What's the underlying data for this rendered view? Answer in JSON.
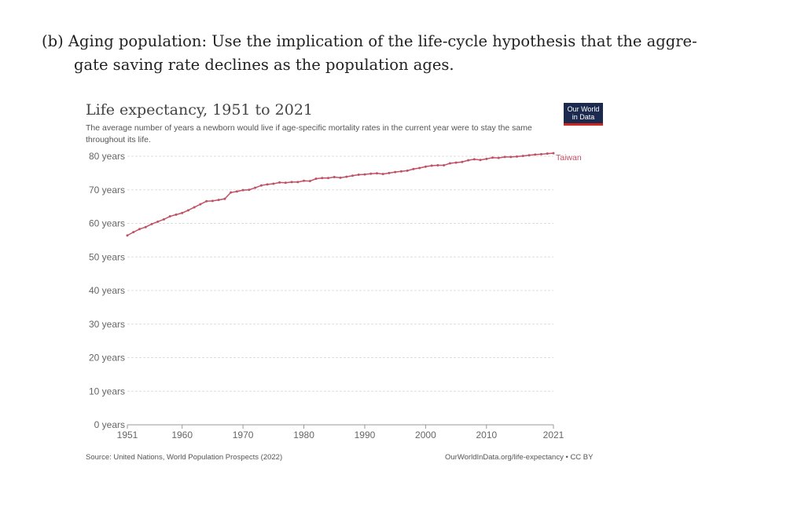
{
  "question": {
    "label": "(b)",
    "line1": "Aging population: Use the implication of the life-cycle hypothesis that the aggre-",
    "line2": "gate saving rate declines as the population ages."
  },
  "chart_data": {
    "type": "line",
    "title": "Life expectancy, 1951 to 2021",
    "subtitle": "The average number of years a newborn would live if age-specific mortality rates in the current year were to stay the same throughout its life.",
    "source": "Source: United Nations, World Population Prospects (2022)",
    "url": "OurWorldInData.org/life-expectancy • CC BY",
    "logo": "Our World in Data",
    "ylim": [
      0,
      80
    ],
    "xlim": [
      1951,
      2021
    ],
    "grid": true,
    "yticks": [
      {
        "v": 0,
        "label": "0 years"
      },
      {
        "v": 10,
        "label": "10 years"
      },
      {
        "v": 20,
        "label": "20 years"
      },
      {
        "v": 30,
        "label": "30 years"
      },
      {
        "v": 40,
        "label": "40 years"
      },
      {
        "v": 50,
        "label": "50 years"
      },
      {
        "v": 60,
        "label": "60 years"
      },
      {
        "v": 70,
        "label": "70 years"
      },
      {
        "v": 80,
        "label": "80 years"
      }
    ],
    "xticks": [
      1951,
      1960,
      1970,
      1980,
      1990,
      2000,
      2010,
      2021
    ],
    "series": [
      {
        "name": "Taiwan",
        "color": "#c15065",
        "x_start": 1951,
        "values": [
          56.4,
          57.4,
          58.3,
          58.9,
          59.8,
          60.5,
          61.2,
          62.1,
          62.6,
          63.1,
          63.9,
          64.8,
          65.7,
          66.6,
          66.7,
          67.0,
          67.3,
          69.2,
          69.5,
          69.9,
          70.0,
          70.6,
          71.3,
          71.6,
          71.8,
          72.2,
          72.1,
          72.3,
          72.3,
          72.7,
          72.6,
          73.3,
          73.5,
          73.5,
          73.8,
          73.6,
          73.9,
          74.2,
          74.5,
          74.6,
          74.8,
          74.9,
          74.7,
          75.0,
          75.3,
          75.5,
          75.7,
          76.2,
          76.5,
          76.9,
          77.2,
          77.3,
          77.3,
          77.9,
          78.1,
          78.3,
          78.8,
          79.1,
          78.9,
          79.2,
          79.6,
          79.5,
          79.8,
          79.8,
          79.9,
          80.1,
          80.3,
          80.5,
          80.6,
          80.8,
          80.9
        ]
      }
    ]
  }
}
